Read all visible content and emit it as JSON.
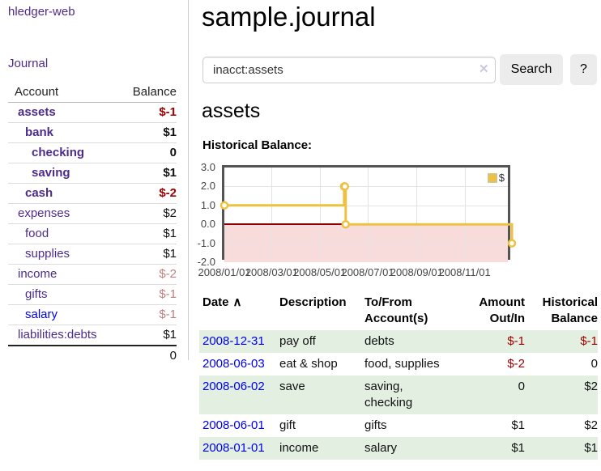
{
  "brand": {
    "label": "hledger-web"
  },
  "nav": {
    "journal": "Journal"
  },
  "icons": {
    "clear": "✕",
    "sort_ascending": "∧"
  },
  "colors": {
    "link_purple": "#4d2b8c",
    "link_blue": "#0000ee",
    "negative_red": "#a00000",
    "faded_negative_red": "#c08080",
    "row_green": "#e2efe1",
    "series_yellow": "#edc240",
    "chart_negative_fill": "#f8dcdc",
    "chart_zero_line": "#8b0000",
    "button_gray": "#ececec"
  },
  "sidebar": {
    "headers": {
      "account": "Account",
      "balance": "Balance"
    },
    "rows": [
      {
        "account": "assets",
        "balance": "$-1"
      },
      {
        "account": "bank",
        "balance": "$1"
      },
      {
        "account": "checking",
        "balance": "0"
      },
      {
        "account": "saving",
        "balance": "$1"
      },
      {
        "account": "cash",
        "balance": "$-2"
      },
      {
        "account": "expenses",
        "balance": "$2"
      },
      {
        "account": "food",
        "balance": "$1"
      },
      {
        "account": "supplies",
        "balance": "$1"
      },
      {
        "account": "income",
        "balance": "$-2"
      },
      {
        "account": "gifts",
        "balance": "$-1"
      },
      {
        "account": "salary",
        "balance": "$-1"
      },
      {
        "account": "liabilities:debts",
        "balance": "$1"
      }
    ],
    "total": "0"
  },
  "main": {
    "title": "sample.journal",
    "search": {
      "value": "inacct:assets",
      "button": "Search",
      "help": "?"
    },
    "account_heading": "assets",
    "chart_heading": "Historical Balance:"
  },
  "chart_data": {
    "type": "line",
    "title": "Historical Balance",
    "style": "step",
    "series": [
      {
        "name": "$",
        "color": "#edc240",
        "points": [
          [
            "2008-01-01",
            1
          ],
          [
            "2008-06-01",
            2
          ],
          [
            "2008-06-02",
            2
          ],
          [
            "2008-06-03",
            0
          ],
          [
            "2008-12-31",
            -1
          ]
        ]
      }
    ],
    "xlim": [
      "2008-01-01",
      "2009-01-01"
    ],
    "ylim": [
      -2,
      3
    ],
    "x_ticks": [
      "2008/01/01",
      "2008/03/01",
      "2008/05/01",
      "2008/07/01",
      "2008/09/01",
      "2008/11/01"
    ],
    "y_ticks": [
      3,
      2,
      1,
      0,
      -1,
      -2
    ],
    "grid": true,
    "legend_position": "top-right",
    "negative_region_fill": "#f8dcdc",
    "zero_line_color": "#8b0000"
  },
  "register": {
    "headers": {
      "date": "Date",
      "description": "Description",
      "accounts": "To/From Account(s)",
      "amount": "Amount Out/In",
      "balance": "Historical Balance"
    },
    "rows": [
      {
        "date": "2008-12-31",
        "description": "pay off",
        "accounts": "debts",
        "amount": "$-1",
        "balance": "$-1"
      },
      {
        "date": "2008-06-03",
        "description": "eat & shop",
        "accounts": "food, supplies",
        "amount": "$-2",
        "balance": "0"
      },
      {
        "date": "2008-06-02",
        "description": "save",
        "accounts": "saving, checking",
        "amount": "0",
        "balance": "$2"
      },
      {
        "date": "2008-06-01",
        "description": "gift",
        "accounts": "gifts",
        "amount": "$1",
        "balance": "$2"
      },
      {
        "date": "2008-01-01",
        "description": "income",
        "accounts": "salary",
        "amount": "$1",
        "balance": "$1"
      }
    ]
  }
}
